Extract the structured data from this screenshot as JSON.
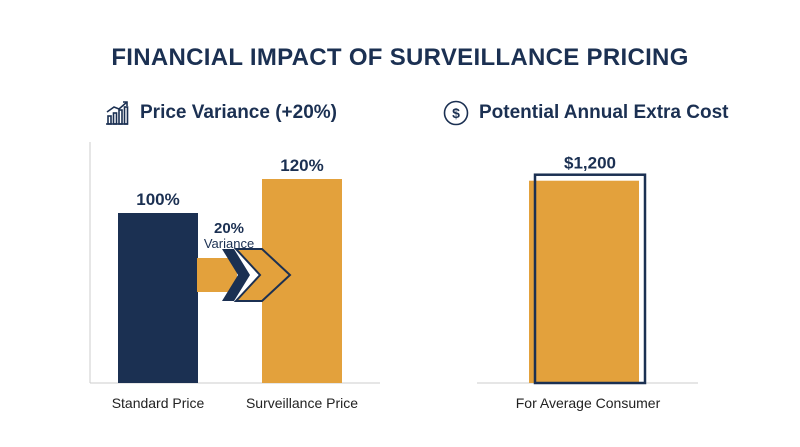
{
  "title": "FINANCIAL IMPACT OF SURVEILLANCE PRICING",
  "colors": {
    "navy": "#1b3052",
    "orange": "#e3a13c",
    "axis": "#cccccc"
  },
  "panels": {
    "left": {
      "icon": "bar-chart-trend-icon",
      "heading": "Price Variance (+20%)"
    },
    "right": {
      "icon": "dollar-circle-icon",
      "heading": "Potential Annual Extra Cost"
    }
  },
  "variance": {
    "value": "20%",
    "label": "Variance"
  },
  "chart_data": [
    {
      "type": "bar",
      "categories": [
        "Standard Price",
        "Surveillance Price"
      ],
      "values": [
        100,
        120
      ],
      "data_labels": [
        "100%",
        "120%"
      ],
      "ylim": [
        0,
        140
      ]
    },
    {
      "type": "bar",
      "categories": [
        "For Average Consumer"
      ],
      "values": [
        1200
      ],
      "data_labels": [
        "$1,200"
      ],
      "ylim": [
        0,
        1400
      ]
    }
  ]
}
